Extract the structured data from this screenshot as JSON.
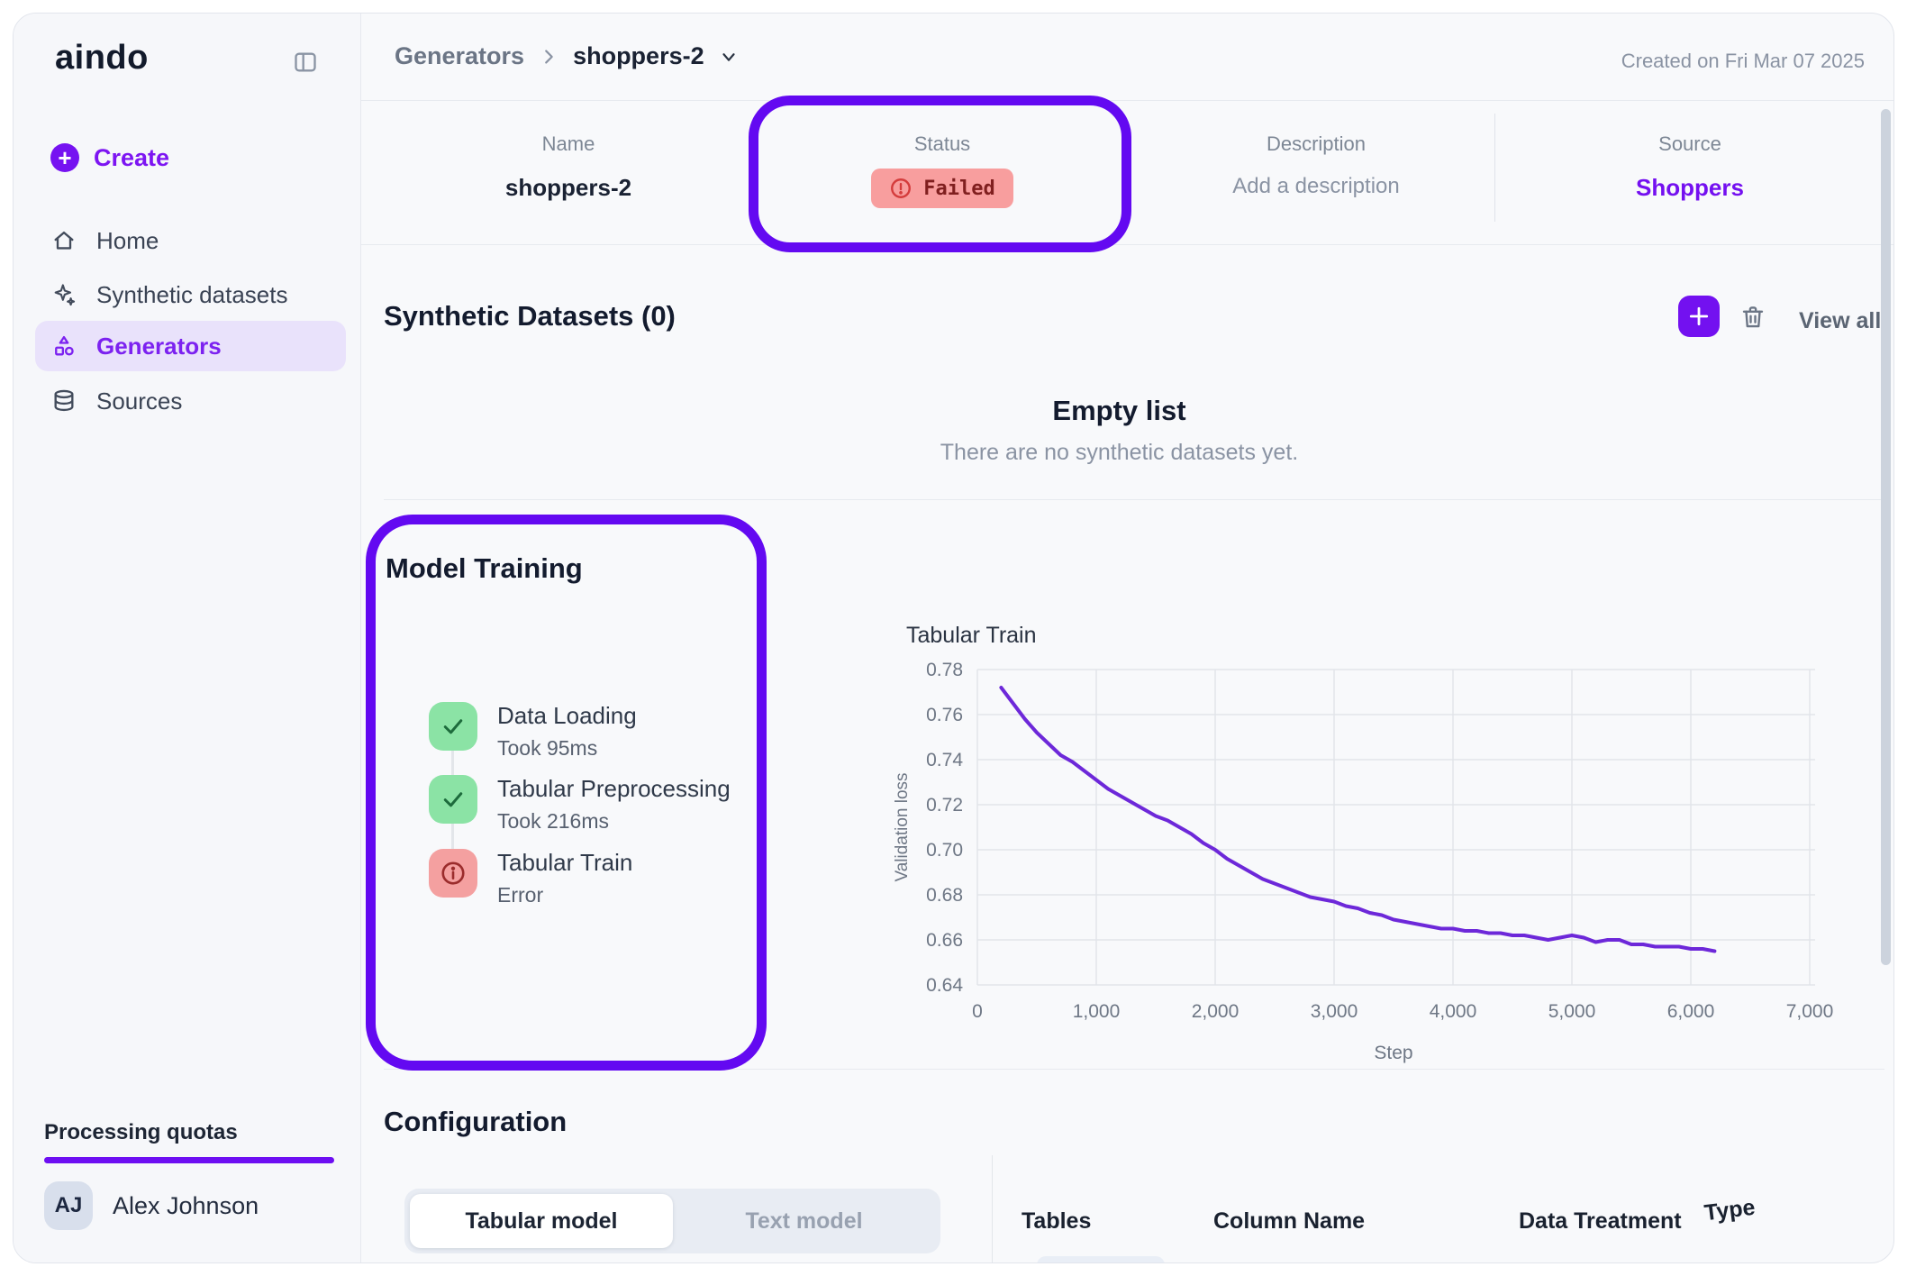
{
  "colors": {
    "accent": "#7311f0",
    "annotation": "#6309f1",
    "failed_bg": "#f89e9e",
    "failed_text": "#801f1f",
    "success_bg": "#8be3a5",
    "error_bg": "#f4a0a0",
    "line": "#6d28d9"
  },
  "brand": {
    "logo": "aindo"
  },
  "sidebar": {
    "create_label": "Create",
    "items": [
      {
        "label": "Home",
        "icon": "home-icon"
      },
      {
        "label": "Synthetic datasets",
        "icon": "sparkles-icon"
      },
      {
        "label": "Generators",
        "icon": "shapes-icon"
      },
      {
        "label": "Sources",
        "icon": "database-icon"
      }
    ],
    "quota_label": "Processing quotas",
    "user": {
      "initials": "AJ",
      "name": "Alex Johnson"
    }
  },
  "header": {
    "breadcrumb_parent": "Generators",
    "breadcrumb_current": "shoppers-2",
    "created": "Created on Fri Mar 07 2025"
  },
  "info": {
    "name_label": "Name",
    "name_value": "shoppers-2",
    "status_label": "Status",
    "status_value": "Failed",
    "description_label": "Description",
    "description_value": "Add a description",
    "source_label": "Source",
    "source_value": "Shoppers"
  },
  "datasets": {
    "title": "Synthetic Datasets (0)",
    "view_all": "View all",
    "empty_title": "Empty list",
    "empty_subtitle": "There are no synthetic datasets yet."
  },
  "training": {
    "title": "Model Training",
    "steps": [
      {
        "label": "Data Loading",
        "detail": "Took 95ms",
        "state": "success"
      },
      {
        "label": "Tabular Preprocessing",
        "detail": "Took 216ms",
        "state": "success"
      },
      {
        "label": "Tabular Train",
        "detail": "Error",
        "state": "error"
      }
    ]
  },
  "chart_data": {
    "type": "line",
    "title": "Tabular Train",
    "xlabel": "Step",
    "ylabel": "Validation loss",
    "xlim": [
      0,
      7000
    ],
    "ylim": [
      0.64,
      0.78
    ],
    "grid": true,
    "legend": "none",
    "x_ticks": [
      0,
      1000,
      2000,
      3000,
      4000,
      5000,
      6000,
      7000
    ],
    "x_tick_labels": [
      "0",
      "1,000",
      "2,000",
      "3,000",
      "4,000",
      "5,000",
      "6,000",
      "7,000"
    ],
    "y_ticks": [
      0.64,
      0.66,
      0.68,
      0.7,
      0.72,
      0.74,
      0.76,
      0.78
    ],
    "y_tick_labels": [
      "0.64",
      "0.66",
      "0.68",
      "0.70",
      "0.72",
      "0.74",
      "0.76",
      "0.78"
    ],
    "series": [
      {
        "name": "Validation loss",
        "color": "#6d28d9",
        "x": [
          200,
          300,
          400,
          500,
          600,
          700,
          800,
          900,
          1000,
          1100,
          1200,
          1300,
          1400,
          1500,
          1600,
          1700,
          1800,
          1900,
          2000,
          2100,
          2200,
          2300,
          2400,
          2500,
          2600,
          2700,
          2800,
          2900,
          3000,
          3100,
          3200,
          3300,
          3400,
          3500,
          3600,
          3700,
          3800,
          3900,
          4000,
          4100,
          4200,
          4300,
          4400,
          4500,
          4600,
          4700,
          4800,
          4900,
          5000,
          5100,
          5200,
          5300,
          5400,
          5500,
          5600,
          5700,
          5800,
          5900,
          6000,
          6100,
          6200
        ],
        "y": [
          0.772,
          0.765,
          0.758,
          0.752,
          0.747,
          0.742,
          0.739,
          0.735,
          0.731,
          0.727,
          0.724,
          0.721,
          0.718,
          0.715,
          0.713,
          0.71,
          0.707,
          0.703,
          0.7,
          0.696,
          0.693,
          0.69,
          0.687,
          0.685,
          0.683,
          0.681,
          0.679,
          0.678,
          0.677,
          0.675,
          0.674,
          0.672,
          0.671,
          0.669,
          0.668,
          0.667,
          0.666,
          0.665,
          0.665,
          0.664,
          0.664,
          0.663,
          0.663,
          0.662,
          0.662,
          0.661,
          0.66,
          0.661,
          0.662,
          0.661,
          0.659,
          0.66,
          0.66,
          0.658,
          0.658,
          0.657,
          0.657,
          0.657,
          0.656,
          0.656,
          0.655
        ]
      }
    ]
  },
  "config": {
    "title": "Configuration",
    "tabs": [
      {
        "label": "Tabular model",
        "active": true
      },
      {
        "label": "Text model",
        "active": false
      }
    ],
    "table_headers": [
      "Tables",
      "Column Name",
      "Data Treatment",
      "Type"
    ]
  }
}
